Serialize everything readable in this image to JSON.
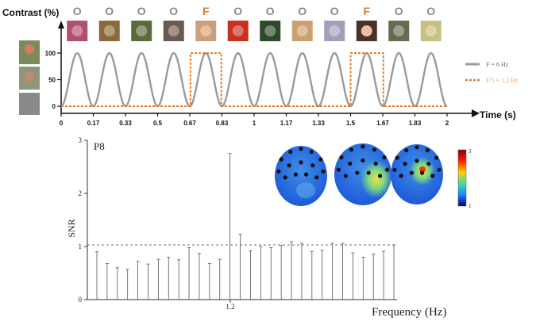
{
  "top_panel": {
    "stimulus_letters": [
      "O",
      "O",
      "O",
      "O",
      "F",
      "O",
      "O",
      "O",
      "O",
      "F",
      "O",
      "O"
    ],
    "stimulus_icons": [
      "flower-icon",
      "horse-icon",
      "bird-icon",
      "building-icon",
      "face-icon",
      "tomato-icon",
      "toucan-icon",
      "lamp-icon",
      "plate-icon",
      "face-icon",
      "horse-icon",
      "melon-icon"
    ],
    "contrast_label": "Contrast (%)",
    "time_label": "Time (s)",
    "legend": [
      {
        "label": "F = 6 Hz",
        "color": "#9a9a9a"
      },
      {
        "label": "F/5 = 1.2 Hz",
        "color": "#e07a2a"
      }
    ],
    "colors": {
      "object": "#8a8a8a",
      "face": "#e07a2a",
      "sine": "#9a9a9a",
      "square": "#e07a2a"
    }
  },
  "chart_data": [
    {
      "type": "line",
      "xlabel": "Time (s)",
      "ylabel": "Contrast (%)",
      "x_ticks": [
        "0",
        "0.17",
        "0.33",
        "0.5",
        "0.67",
        "0.83",
        "1",
        "1.17",
        "1.33",
        "1.5",
        "1.67",
        "1.83",
        "2"
      ],
      "y_ticks": [
        "0",
        "50",
        "100"
      ],
      "xlim": [
        0,
        2
      ],
      "ylim": [
        0,
        100
      ],
      "series": [
        {
          "name": "F = 6 Hz",
          "frequency_hz": 6,
          "shape": "sinusoid"
        },
        {
          "name": "F/5 = 1.2 Hz",
          "frequency_hz": 1.2,
          "shape": "square",
          "on_intervals": [
            [
              0.67,
              0.83
            ],
            [
              1.5,
              1.67
            ]
          ]
        }
      ]
    },
    {
      "type": "bar",
      "title": "P8",
      "xlabel": "Frequency (Hz)",
      "ylabel": "SNR",
      "ylim": [
        0,
        3
      ],
      "y_ticks": [
        "0",
        "1",
        "2",
        "3"
      ],
      "x_tick_labels": [
        "1.2"
      ],
      "highlight_index": 14,
      "reference_line": 1.03,
      "values": [
        0.9,
        0.68,
        0.6,
        0.57,
        0.72,
        0.67,
        0.76,
        0.8,
        0.75,
        0.98,
        0.87,
        0.68,
        0.76,
        2.75,
        1.23,
        0.92,
        1.0,
        0.98,
        1.02,
        1.09,
        1.06,
        0.91,
        0.93,
        1.06,
        1.06,
        0.88,
        0.8,
        0.86,
        0.91,
        1.03
      ]
    }
  ],
  "colorbar": {
    "max_label": "3",
    "min_label": "1"
  }
}
